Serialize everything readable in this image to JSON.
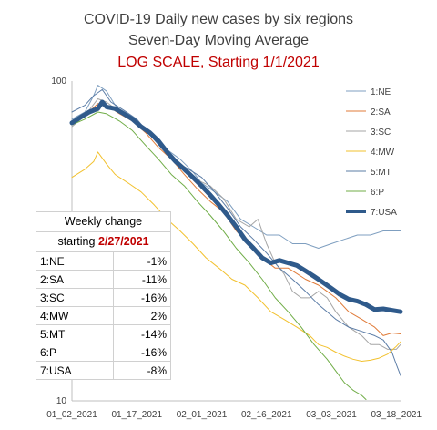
{
  "chart_data": {
    "type": "line",
    "title": "COVID-19 Daily new cases by six regions",
    "subtitle": "Seven-Day Moving Average",
    "subtitle2": "LOG SCALE, Starting 1/1/2021",
    "yscale": "log",
    "ylim": [
      10,
      100
    ],
    "yticks": [
      "100",
      "10"
    ],
    "xtick_labels": [
      "01_02_2021",
      "01_17_2021",
      "02_01_2021",
      "02_16_2021",
      "03_03_2021",
      "03_18_2021"
    ],
    "xtick_days": [
      1,
      16,
      31,
      46,
      61,
      76
    ],
    "legend_position": "right",
    "series": [
      {
        "name": "1:NE",
        "color": "#7f9fc0",
        "width": 1,
        "points": [
          [
            1,
            76
          ],
          [
            4,
            80
          ],
          [
            6,
            90
          ],
          [
            7,
            97
          ],
          [
            9,
            93
          ],
          [
            11,
            84
          ],
          [
            14,
            77
          ],
          [
            17,
            72
          ],
          [
            20,
            68
          ],
          [
            23,
            61
          ],
          [
            26,
            57
          ],
          [
            29,
            52
          ],
          [
            31,
            48
          ],
          [
            34,
            45
          ],
          [
            37,
            42
          ],
          [
            40,
            37
          ],
          [
            43,
            35
          ],
          [
            46,
            33
          ],
          [
            49,
            33
          ],
          [
            52,
            31
          ],
          [
            55,
            31
          ],
          [
            58,
            30
          ],
          [
            61,
            31
          ],
          [
            64,
            32
          ],
          [
            67,
            33
          ],
          [
            70,
            33
          ],
          [
            73,
            34
          ],
          [
            75,
            34
          ],
          [
            77,
            34
          ]
        ]
      },
      {
        "name": "2:SA",
        "color": "#e07b39",
        "width": 1,
        "points": [
          [
            1,
            75
          ],
          [
            4,
            78
          ],
          [
            7,
            85
          ],
          [
            9,
            84
          ],
          [
            12,
            79
          ],
          [
            15,
            75
          ],
          [
            18,
            69
          ],
          [
            21,
            62
          ],
          [
            24,
            57
          ],
          [
            27,
            51
          ],
          [
            30,
            46
          ],
          [
            33,
            42
          ],
          [
            36,
            39
          ],
          [
            39,
            34
          ],
          [
            42,
            31
          ],
          [
            45,
            28
          ],
          [
            48,
            26
          ],
          [
            51,
            26
          ],
          [
            53,
            25
          ],
          [
            55,
            24
          ],
          [
            58,
            23
          ],
          [
            60,
            22
          ],
          [
            62,
            21
          ],
          [
            65,
            19
          ],
          [
            68,
            18
          ],
          [
            71,
            17
          ],
          [
            73,
            16
          ],
          [
            75,
            16.3
          ],
          [
            77,
            16.2
          ]
        ]
      },
      {
        "name": "3:SC",
        "color": "#a5a5a5",
        "width": 1,
        "points": [
          [
            1,
            72
          ],
          [
            4,
            78
          ],
          [
            7,
            88
          ],
          [
            9,
            86
          ],
          [
            12,
            80
          ],
          [
            15,
            76
          ],
          [
            18,
            70
          ],
          [
            21,
            64
          ],
          [
            24,
            58
          ],
          [
            27,
            52
          ],
          [
            30,
            49
          ],
          [
            33,
            47
          ],
          [
            36,
            43
          ],
          [
            39,
            37
          ],
          [
            42,
            35
          ],
          [
            44,
            37
          ],
          [
            46,
            31
          ],
          [
            48,
            27
          ],
          [
            50,
            25
          ],
          [
            52,
            22
          ],
          [
            54,
            21
          ],
          [
            56,
            21
          ],
          [
            58,
            22
          ],
          [
            60,
            21
          ],
          [
            62,
            19
          ],
          [
            65,
            17
          ],
          [
            68,
            16
          ],
          [
            70,
            15
          ],
          [
            72,
            15
          ],
          [
            74,
            14.5
          ],
          [
            76,
            14.5
          ],
          [
            77,
            15
          ]
        ]
      },
      {
        "name": "4:MW",
        "color": "#f2c12e",
        "width": 1,
        "points": [
          [
            1,
            50
          ],
          [
            4,
            53
          ],
          [
            6,
            56
          ],
          [
            7,
            60
          ],
          [
            9,
            55
          ],
          [
            11,
            51
          ],
          [
            14,
            48
          ],
          [
            17,
            45
          ],
          [
            20,
            41
          ],
          [
            23,
            37
          ],
          [
            26,
            34
          ],
          [
            29,
            31
          ],
          [
            32,
            28
          ],
          [
            35,
            26
          ],
          [
            38,
            24
          ],
          [
            41,
            23
          ],
          [
            44,
            21
          ],
          [
            47,
            19
          ],
          [
            50,
            18
          ],
          [
            53,
            17
          ],
          [
            56,
            16
          ],
          [
            58,
            15
          ],
          [
            60,
            14.7
          ],
          [
            62,
            14.2
          ],
          [
            64,
            13.8
          ],
          [
            66,
            13.5
          ],
          [
            68,
            13.3
          ],
          [
            70,
            13.4
          ],
          [
            72,
            13.6
          ],
          [
            74,
            14
          ],
          [
            76,
            14.8
          ],
          [
            77,
            15.3
          ]
        ]
      },
      {
        "name": "5:MT",
        "color": "#5b7ca6",
        "width": 1,
        "points": [
          [
            1,
            80
          ],
          [
            4,
            84
          ],
          [
            6,
            90
          ],
          [
            8,
            94
          ],
          [
            10,
            86
          ],
          [
            13,
            81
          ],
          [
            16,
            76
          ],
          [
            19,
            68
          ],
          [
            22,
            61
          ],
          [
            25,
            56
          ],
          [
            28,
            53
          ],
          [
            31,
            50
          ],
          [
            34,
            45
          ],
          [
            37,
            40
          ],
          [
            40,
            35
          ],
          [
            43,
            32
          ],
          [
            46,
            29
          ],
          [
            49,
            26
          ],
          [
            52,
            24
          ],
          [
            55,
            22
          ],
          [
            58,
            20
          ],
          [
            60,
            19
          ],
          [
            62,
            18
          ],
          [
            65,
            17
          ],
          [
            68,
            16.5
          ],
          [
            71,
            16
          ],
          [
            73,
            15.5
          ],
          [
            75,
            14.2
          ],
          [
            76,
            13
          ],
          [
            77,
            12
          ]
        ]
      },
      {
        "name": "6:P",
        "color": "#70ad47",
        "width": 1,
        "points": [
          [
            1,
            73
          ],
          [
            4,
            76
          ],
          [
            7,
            80
          ],
          [
            9,
            79
          ],
          [
            12,
            75
          ],
          [
            15,
            70
          ],
          [
            18,
            63
          ],
          [
            21,
            57
          ],
          [
            24,
            51
          ],
          [
            27,
            47
          ],
          [
            30,
            42
          ],
          [
            33,
            38
          ],
          [
            36,
            34
          ],
          [
            39,
            30
          ],
          [
            42,
            27
          ],
          [
            45,
            24
          ],
          [
            48,
            21
          ],
          [
            51,
            19
          ],
          [
            54,
            17
          ],
          [
            57,
            15
          ],
          [
            60,
            13.5
          ],
          [
            62,
            12.4
          ],
          [
            64,
            11.4
          ],
          [
            66,
            10.8
          ],
          [
            68,
            10.4
          ],
          [
            69,
            10.1
          ]
        ]
      },
      {
        "name": "7:USA",
        "color": "#2f5a8b",
        "width": 5,
        "points": [
          [
            1,
            74
          ],
          [
            3,
            77
          ],
          [
            5,
            80
          ],
          [
            7,
            82
          ],
          [
            8,
            86
          ],
          [
            9,
            83
          ],
          [
            11,
            82
          ],
          [
            13,
            79
          ],
          [
            15,
            76
          ],
          [
            17,
            72
          ],
          [
            19,
            69
          ],
          [
            21,
            65
          ],
          [
            23,
            60
          ],
          [
            25,
            56
          ],
          [
            27,
            53
          ],
          [
            29,
            50
          ],
          [
            31,
            47
          ],
          [
            33,
            44
          ],
          [
            35,
            41
          ],
          [
            37,
            38
          ],
          [
            39,
            35
          ],
          [
            41,
            32
          ],
          [
            43,
            30
          ],
          [
            45,
            28
          ],
          [
            47,
            27
          ],
          [
            49,
            27.5
          ],
          [
            51,
            27
          ],
          [
            53,
            26.5
          ],
          [
            55,
            25.5
          ],
          [
            57,
            24.5
          ],
          [
            59,
            23.5
          ],
          [
            61,
            22.5
          ],
          [
            63,
            21.5
          ],
          [
            65,
            20.8
          ],
          [
            67,
            20.5
          ],
          [
            69,
            20
          ],
          [
            71,
            19.3
          ],
          [
            73,
            19.4
          ],
          [
            75,
            19.2
          ],
          [
            77,
            19
          ]
        ]
      }
    ],
    "table": {
      "header_line1": "Weekly change",
      "header_line2_prefix": "starting",
      "header_date": "2/27/2021",
      "rows": [
        {
          "label": "1:NE",
          "value": "-1%"
        },
        {
          "label": "2:SA",
          "value": "-11%"
        },
        {
          "label": "3:SC",
          "value": "-16%"
        },
        {
          "label": "4:MW",
          "value": "2%"
        },
        {
          "label": "5:MT",
          "value": "-14%"
        },
        {
          "label": "6:P",
          "value": "-16%"
        },
        {
          "label": "7:USA",
          "value": "-8%"
        }
      ]
    }
  },
  "colors": {
    "title": "#404040",
    "subtitle2": "#c00000",
    "axis": "#bfbfbf",
    "grid": "#bfbfbf"
  }
}
